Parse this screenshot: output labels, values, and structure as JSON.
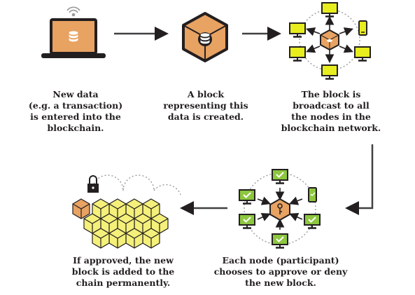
{
  "steps": [
    {
      "caption": "New data\n(e.g. a transaction)\nis entered into the\nblockchain."
    },
    {
      "caption": "A block\nrepresenting this\ndata is created."
    },
    {
      "caption": "The block is\nbroadcast to all\nthe nodes in the\nblockchain network."
    },
    {
      "caption": "Each node (participant)\nchooses to approve or deny\nthe new block."
    },
    {
      "caption": "If approved, the new\nblock is added to the\nchain permanently."
    }
  ],
  "colors": {
    "ink": "#231f20",
    "block": "#e8a262",
    "screen": "#e8ed1d",
    "approved": "#8dc63f",
    "chain": "#f4f07a",
    "arrow": "#414042",
    "dots": "#9a9a9a"
  },
  "icons": [
    "wifi-icon",
    "laptop-icon",
    "database-icon",
    "cube-icon",
    "monitor-icon",
    "phone-icon",
    "check-icon",
    "key-icon",
    "lock-icon",
    "arrow-icon"
  ]
}
